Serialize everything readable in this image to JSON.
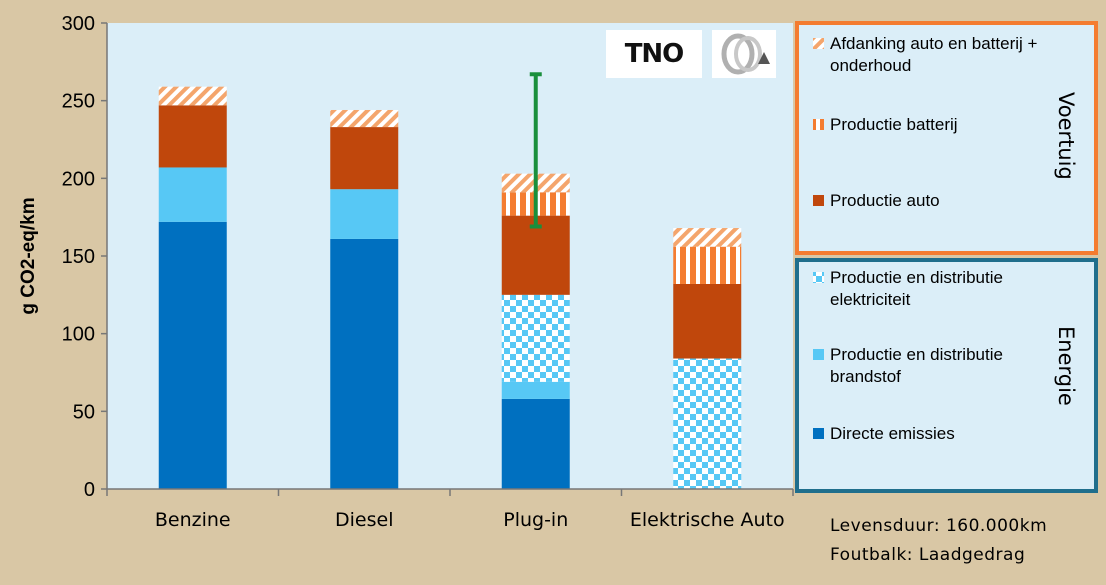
{
  "chart_data": {
    "type": "bar",
    "stacked": true,
    "categories": [
      "Benzine",
      "Diesel",
      "Plug-in",
      "Elektrische Auto"
    ],
    "ylabel": "g CO2-eq/km",
    "ylim": [
      0,
      300
    ],
    "yticks": [
      0,
      50,
      100,
      150,
      200,
      250,
      300
    ],
    "grid": false,
    "series": [
      {
        "name": "Directe emissies",
        "values": [
          172,
          161,
          58,
          0
        ],
        "color": "#0070c0",
        "pattern": "solid"
      },
      {
        "name": "Productie en distributie brandstof",
        "values": [
          35,
          32,
          11,
          0
        ],
        "color": "#57c8f5",
        "pattern": "solid"
      },
      {
        "name": "Productie en distributie elektriciteit",
        "values": [
          0,
          0,
          56,
          84
        ],
        "color": "#57c8f5",
        "pattern": "checker"
      },
      {
        "name": "Productie auto",
        "values": [
          40,
          40,
          51,
          48
        ],
        "color": "#c0470c",
        "pattern": "solid"
      },
      {
        "name": "Productie batterij",
        "values": [
          0,
          0,
          15,
          24
        ],
        "color": "#f47c30",
        "pattern": "vertical-stripes"
      },
      {
        "name": "Afdanking auto en batterij + onderhoud",
        "values": [
          12,
          11,
          12,
          12
        ],
        "color": "#f4a56c",
        "pattern": "diagonal-stripes"
      }
    ],
    "error_bar": {
      "category": "Plug-in",
      "low": 169,
      "high": 267,
      "color": "#1a8f3c"
    },
    "legend_position": "right"
  },
  "legend": {
    "vehicle_group_label": "Voertuig",
    "energy_group_label": "Energie",
    "vehicle_border_color": "#f47c30",
    "energy_border_color": "#1f6e8c",
    "vehicle_items": [
      {
        "lines": [
          "Afdanking auto en batterij +",
          "onderhoud"
        ]
      },
      {
        "lines": [
          "Productie batterij"
        ]
      },
      {
        "lines": [
          "Productie auto"
        ]
      }
    ],
    "energy_items": [
      {
        "lines": [
          "Productie en distributie",
          "elektriciteit"
        ]
      },
      {
        "lines": [
          "Productie en distributie",
          "brandstof"
        ]
      },
      {
        "lines": [
          "Directe emissies"
        ]
      }
    ]
  },
  "logos": {
    "tno": "TNO"
  },
  "notes": {
    "lifetime": "Levensduur: 160.000km",
    "error_bar": "Foutbalk: Laadgedrag"
  }
}
